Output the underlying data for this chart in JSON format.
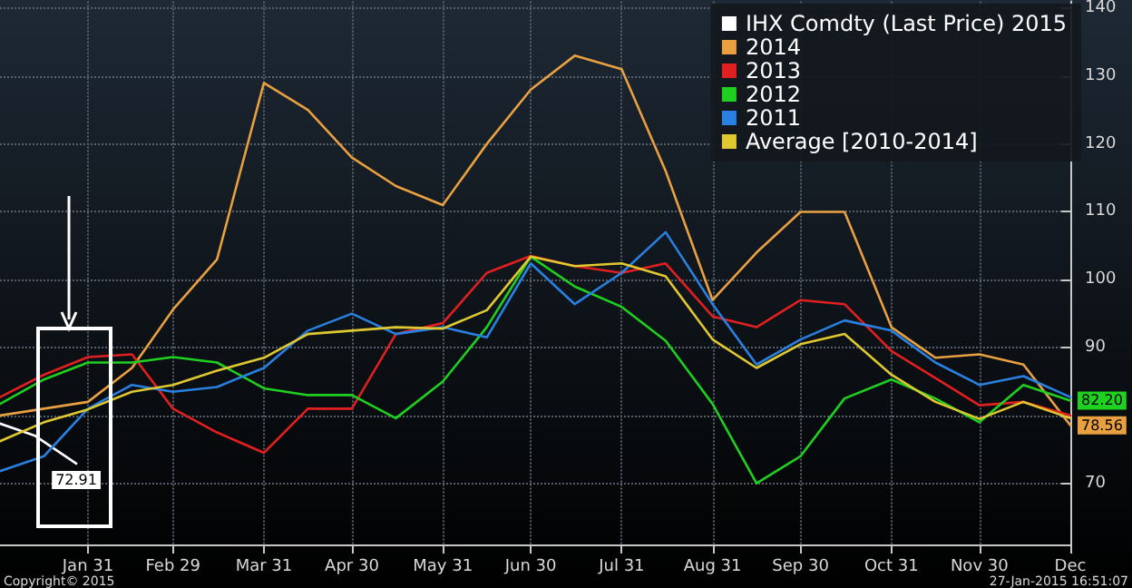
{
  "chart_data": {
    "type": "line",
    "x": [
      "--01-01",
      "--01-16",
      "--01-31",
      "--02-15",
      "--02-29",
      "--03-15",
      "--03-31",
      "--04-15",
      "--04-30",
      "--05-15",
      "--05-31",
      "--06-15",
      "--06-30",
      "--07-15",
      "--07-31",
      "--08-15",
      "--08-31",
      "--09-15",
      "--09-30",
      "--10-15",
      "--10-31",
      "--11-15",
      "--11-30",
      "--12-15",
      "--12-31"
    ],
    "series": [
      {
        "name": "IHX Comdty (Last Price) 2015",
        "color": "#ffffff",
        "x": [
          "--01-01",
          "--01-13",
          "--01-27"
        ],
        "values": [
          78.8,
          77,
          72.91
        ],
        "value_labels": [
          null,
          null,
          "72.91"
        ]
      },
      {
        "name": "2014",
        "color": "#e8a040",
        "values": [
          80,
          81,
          82,
          87,
          95.6,
          103,
          129,
          125,
          118,
          113.8,
          111,
          120,
          128,
          133,
          131,
          116,
          97,
          104,
          110,
          110,
          93,
          88.5,
          89,
          87.5,
          78.56
        ],
        "value_labels": [
          null,
          null,
          null,
          null,
          null,
          null,
          null,
          null,
          null,
          null,
          null,
          null,
          null,
          null,
          null,
          null,
          null,
          null,
          null,
          null,
          null,
          null,
          null,
          null,
          "78.56"
        ]
      },
      {
        "name": "2013",
        "color": "#e02020",
        "values": [
          82.7,
          86,
          88.6,
          89,
          81,
          77.5,
          74.5,
          81,
          81,
          92,
          93.6,
          101,
          103.5,
          102,
          101,
          102.4,
          94.6,
          93,
          97,
          96.4,
          89.5,
          85.5,
          81.5,
          82,
          80
        ]
      },
      {
        "name": "2012",
        "color": "#20d020",
        "values": [
          81.7,
          85.3,
          87.8,
          87.8,
          88.6,
          87.8,
          84,
          83,
          83,
          79.6,
          85,
          93,
          103.4,
          99,
          96,
          91,
          81.7,
          70,
          74,
          82.5,
          85.3,
          82.5,
          79,
          84.5,
          82.2
        ],
        "value_labels": [
          null,
          null,
          null,
          null,
          null,
          null,
          null,
          null,
          null,
          null,
          null,
          null,
          null,
          null,
          null,
          null,
          null,
          null,
          null,
          null,
          null,
          null,
          null,
          null,
          "82.20"
        ]
      },
      {
        "name": "2011",
        "color": "#2a80e0",
        "values": [
          71.8,
          74,
          81,
          84.5,
          83.5,
          84.2,
          87,
          92.5,
          95,
          92,
          93,
          91.5,
          102.4,
          96.4,
          101,
          107,
          96.4,
          87.5,
          91.2,
          94,
          92.5,
          87.8,
          84.5,
          85.8,
          82.7
        ]
      },
      {
        "name": "Average [2010-2014]",
        "color": "#e0c830",
        "values": [
          76.2,
          79,
          80.9,
          83.5,
          84.5,
          86.6,
          88.5,
          92,
          92.5,
          93,
          92.8,
          95.5,
          103.4,
          102,
          102.4,
          100.5,
          91.2,
          87,
          90.5,
          92,
          86,
          82,
          79.5,
          82,
          79.6
        ]
      }
    ],
    "xlim": [
      "--01-01",
      "--12-31"
    ],
    "xticks": [
      {
        "value": "--01-31",
        "label": "Jan 31"
      },
      {
        "value": "--02-29",
        "label": "Feb 29"
      },
      {
        "value": "--03-31",
        "label": "Mar 31"
      },
      {
        "value": "--04-30",
        "label": "Apr 30"
      },
      {
        "value": "--05-31",
        "label": "May 31"
      },
      {
        "value": "--06-30",
        "label": "Jun 30"
      },
      {
        "value": "--07-31",
        "label": "Jul 31"
      },
      {
        "value": "--08-31",
        "label": "Aug 31"
      },
      {
        "value": "--09-30",
        "label": "Sep 30"
      },
      {
        "value": "--10-31",
        "label": "Oct 31"
      },
      {
        "value": "--11-30",
        "label": "Nov 30"
      },
      {
        "value": "--12-31",
        "label": "Dec"
      }
    ],
    "ylim": [
      61,
      141
    ],
    "yticks": [
      70,
      {
        "value": 80,
        "label": null
      },
      90,
      100,
      110,
      120,
      130,
      140
    ],
    "annotations": [
      "Copyright© 2015",
      "27-Jan-2015 16:51:07"
    ],
    "grid": true,
    "legend": "top right",
    "marker": "none",
    "line_style": "solid"
  }
}
